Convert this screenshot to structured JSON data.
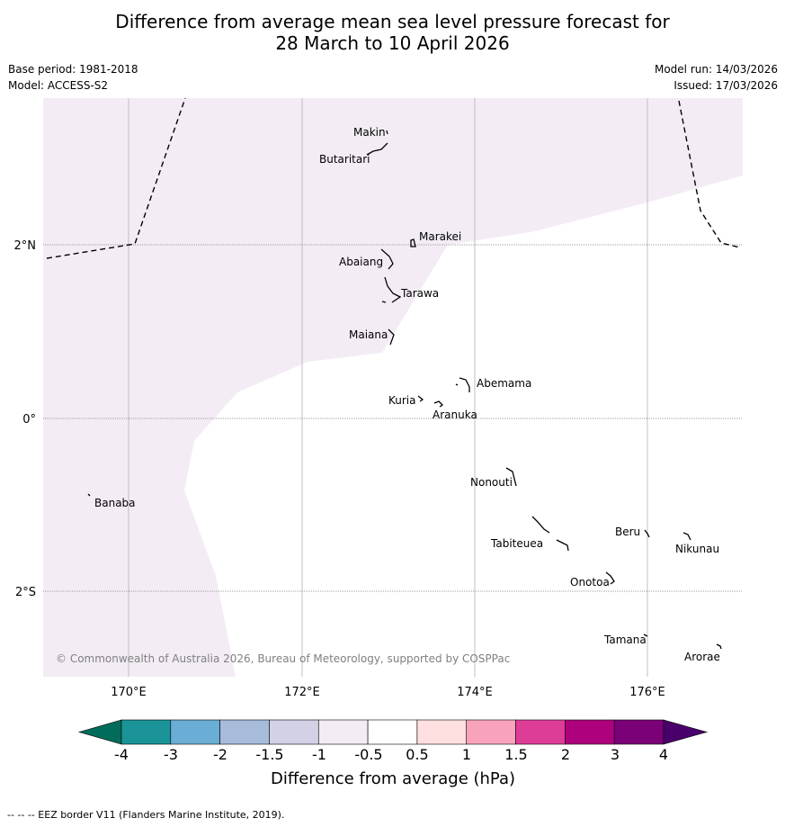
{
  "title_line1": "Difference from average mean sea level pressure forecast for",
  "title_line2": "28 March to 10 April 2026",
  "base_period": "Base period: 1981-2018",
  "model": "Model: ACCESS-S2",
  "model_run": "Model run: 14/03/2026",
  "issued": "Issued: 17/03/2026",
  "lat_labels": [
    "2°N",
    "0°",
    "2°S"
  ],
  "lon_labels": [
    "170°E",
    "172°E",
    "174°E",
    "176°E"
  ],
  "places": {
    "makin": "Makin",
    "butaritari": "Butaritari",
    "marakei": "Marakei",
    "abaiang": "Abaiang",
    "tarawa": "Tarawa",
    "maiana": "Maiana",
    "abemama": "Abemama",
    "kuria": "Kuria",
    "aranuka": "Aranuka",
    "nonouti": "Nonouti",
    "banaba": "Banaba",
    "beru": "Beru",
    "nikunau": "Nikunau",
    "tabiteuea": "Tabiteuea",
    "onotoa": "Onotoa",
    "tamana": "Tamana",
    "arorae": "Arorae"
  },
  "copyright": "© Commonwealth of Australia 2026, Bureau of Meteorology, supported by COSPPac",
  "colorbar": {
    "label": "Difference from average (hPa)",
    "ticks": [
      "-4",
      "-3",
      "-2",
      "-1.5",
      "-1",
      "-0.5",
      "0.5",
      "1",
      "1.5",
      "2",
      "3",
      "4"
    ],
    "colors": [
      "#1a9499",
      "#6aaed5",
      "#a7bcdb",
      "#d2d1e6",
      "#f3ecf5",
      "#ffffff",
      "#fde0df",
      "#f9a2bc",
      "#de3d97",
      "#ae017e",
      "#7a0177"
    ],
    "under_color": "#016c59",
    "over_color": "#49006a"
  },
  "shading_color": "#f3ecf5",
  "footer": "--  --  -- EEZ border V11 (Flanders Marine Institute, 2019)."
}
